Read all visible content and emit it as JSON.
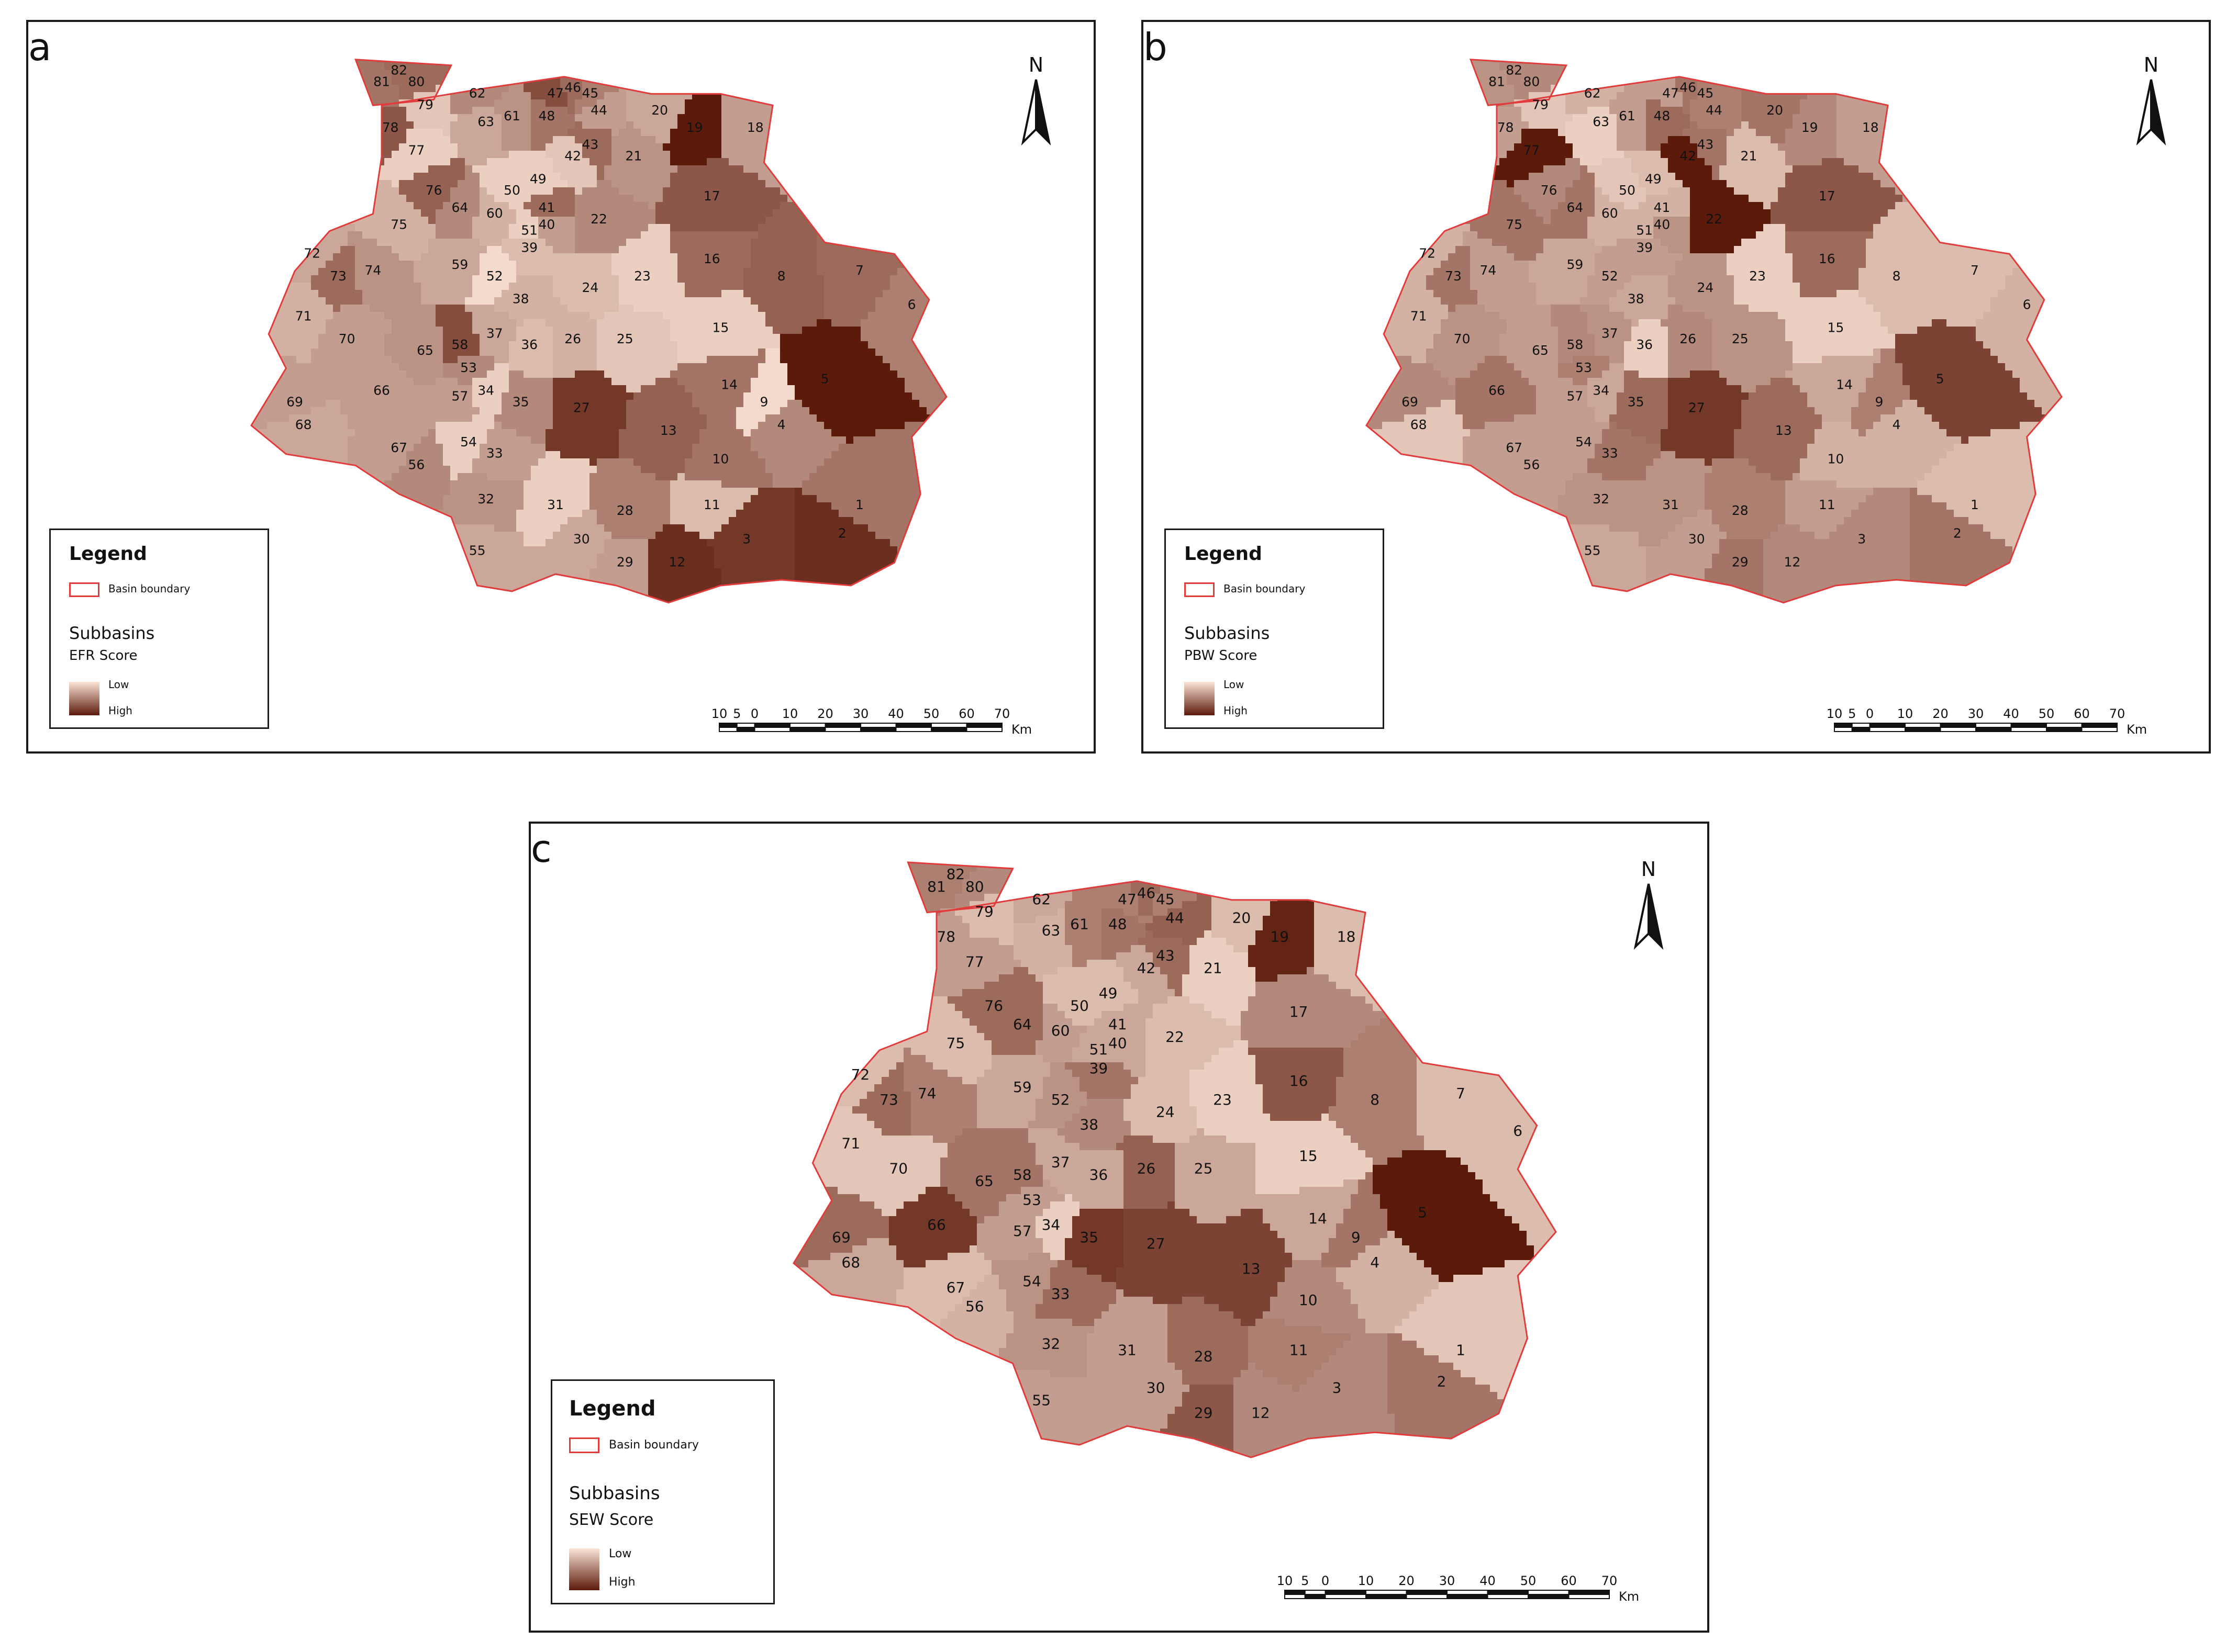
{
  "map_panels": [
    {
      "letter": "a",
      "legend_title": "Legend",
      "boundary_label": "Basin boundary",
      "layer_label": "Subbasins",
      "score_label": "EFR Score",
      "low_label": "Low",
      "high_label": "High",
      "north_label": "N",
      "scale_ticks": [
        "10",
        "5",
        "0",
        "10",
        "20",
        "30",
        "40",
        "50",
        "60",
        "70"
      ],
      "scale_unit": "Km",
      "high_scoring_subbasins": [
        "19",
        "5"
      ]
    },
    {
      "letter": "b",
      "legend_title": "Legend",
      "boundary_label": "Basin boundary",
      "layer_label": "Subbasins",
      "score_label": "PBW Score",
      "low_label": "Low",
      "high_label": "High",
      "north_label": "N",
      "scale_ticks": [
        "10",
        "5",
        "0",
        "10",
        "20",
        "30",
        "40",
        "50",
        "60",
        "70"
      ],
      "scale_unit": "Km",
      "high_scoring_subbasins": [
        "77",
        "42",
        "22"
      ]
    },
    {
      "letter": "c",
      "legend_title": "Legend",
      "boundary_label": "Basin boundary",
      "layer_label": "Subbasins",
      "score_label": "SEW Score",
      "low_label": "Low",
      "high_label": "High",
      "north_label": "N",
      "scale_ticks": [
        "10",
        "5",
        "0",
        "10",
        "20",
        "30",
        "40",
        "50",
        "60",
        "70"
      ],
      "scale_unit": "Km",
      "high_scoring_subbasins": [
        "19",
        "5"
      ]
    }
  ],
  "subbasin_ids": [
    "1",
    "2",
    "3",
    "4",
    "5",
    "6",
    "7",
    "8",
    "9",
    "10",
    "11",
    "12",
    "13",
    "14",
    "15",
    "16",
    "17",
    "18",
    "19",
    "20",
    "21",
    "22",
    "23",
    "24",
    "25",
    "26",
    "27",
    "28",
    "29",
    "30",
    "31",
    "32",
    "33",
    "34",
    "35",
    "36",
    "37",
    "38",
    "39",
    "40",
    "41",
    "42",
    "43",
    "44",
    "45",
    "46",
    "47",
    "48",
    "49",
    "50",
    "51",
    "52",
    "53",
    "54",
    "55",
    "56",
    "57",
    "58",
    "59",
    "60",
    "61",
    "62",
    "63",
    "64",
    "65",
    "66",
    "67",
    "68",
    "69",
    "70",
    "71",
    "72",
    "73",
    "74",
    "75",
    "76",
    "77",
    "78",
    "79",
    "80",
    "81",
    "82"
  ],
  "colors": {
    "ramp_low": "#fbe4d6",
    "ramp_high": "#5c1a0b",
    "boundary": "#e23b3b",
    "panel_border": "#1a1a1a"
  }
}
